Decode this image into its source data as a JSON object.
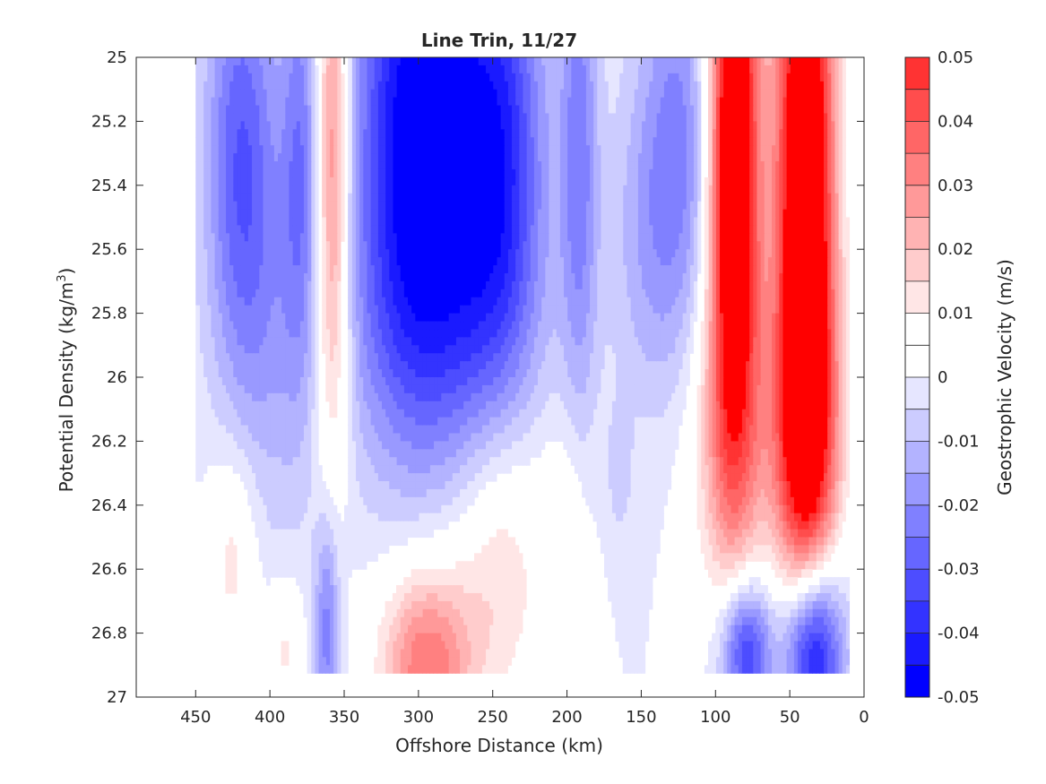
{
  "chart_data": {
    "type": "heatmap",
    "title": "Line Trin, 11/27",
    "xlabel": "Offshore Distance (km)",
    "ylabel_main": "Potential Density (kg/m",
    "ylabel_sup": "3",
    "ylabel_close": ")",
    "colorbar_label": "Geostrophic Velocity (m/s)",
    "xlim": [
      490,
      0
    ],
    "ylim": [
      25,
      27
    ],
    "x_reversed": true,
    "y_reversed": true,
    "grid": false,
    "x_ticks": [
      {
        "value": 450,
        "label": "450"
      },
      {
        "value": 400,
        "label": "400"
      },
      {
        "value": 350,
        "label": "350"
      },
      {
        "value": 300,
        "label": "300"
      },
      {
        "value": 250,
        "label": "250"
      },
      {
        "value": 200,
        "label": "200"
      },
      {
        "value": 150,
        "label": "150"
      },
      {
        "value": 100,
        "label": "100"
      },
      {
        "value": 50,
        "label": "50"
      },
      {
        "value": 0,
        "label": "0"
      }
    ],
    "y_ticks": [
      {
        "value": 25,
        "label": "25"
      },
      {
        "value": 25.2,
        "label": "25.2"
      },
      {
        "value": 25.4,
        "label": "25.4"
      },
      {
        "value": 25.6,
        "label": "25.6"
      },
      {
        "value": 25.8,
        "label": "25.8"
      },
      {
        "value": 26,
        "label": "26"
      },
      {
        "value": 26.2,
        "label": "26.2"
      },
      {
        "value": 26.4,
        "label": "26.4"
      },
      {
        "value": 26.6,
        "label": "26.6"
      },
      {
        "value": 26.8,
        "label": "26.8"
      },
      {
        "value": 27,
        "label": "27"
      }
    ],
    "colorbar": {
      "min": -0.05,
      "max": 0.05,
      "levels": [
        -0.05,
        -0.045,
        -0.04,
        -0.035,
        -0.03,
        -0.025,
        -0.02,
        -0.015,
        -0.01,
        -0.005,
        0,
        0.005,
        0.01,
        0.015,
        0.02,
        0.025,
        0.03,
        0.035,
        0.04,
        0.045,
        0.05
      ],
      "colors": [
        "#0000ff",
        "#1a1aff",
        "#3333ff",
        "#4d4dff",
        "#6666ff",
        "#8080ff",
        "#9999ff",
        "#b3b3ff",
        "#ccccff",
        "#e6e6ff",
        "#ffffff",
        "#ffffff",
        "#ffe6e6",
        "#ffcccc",
        "#ffb3b3",
        "#ff9999",
        "#ff8080",
        "#ff6666",
        "#ff4d4d",
        "#ff3333",
        "#ff0000"
      ],
      "ticks": [
        {
          "value": 0.05,
          "label": "0.05"
        },
        {
          "value": 0.04,
          "label": "0.04"
        },
        {
          "value": 0.03,
          "label": "0.03"
        },
        {
          "value": 0.02,
          "label": "0.02"
        },
        {
          "value": 0.01,
          "label": "0.01"
        },
        {
          "value": 0,
          "label": "0"
        },
        {
          "value": -0.01,
          "label": "-0.01"
        },
        {
          "value": -0.02,
          "label": "-0.02"
        },
        {
          "value": -0.03,
          "label": "-0.03"
        },
        {
          "value": -0.04,
          "label": "-0.04"
        },
        {
          "value": -0.05,
          "label": "-0.05"
        }
      ]
    },
    "data_extent": {
      "x": [
        10,
        450
      ],
      "y": [
        25,
        26.9
      ]
    },
    "features": [
      {
        "name": "a1",
        "x": 420,
        "y": 25.3,
        "sx": 17,
        "sy": 0.5,
        "amp": -0.028
      },
      {
        "name": "a2",
        "x": 380,
        "y": 25.3,
        "sx": 9,
        "sy": 0.5,
        "amp": -0.02
      },
      {
        "name": "a3",
        "x": 400,
        "y": 25.9,
        "sx": 22,
        "sy": 0.5,
        "amp": -0.01
      },
      {
        "name": "b1",
        "x": 358,
        "y": 25.25,
        "sx": 8,
        "sy": 0.5,
        "amp": 0.034
      },
      {
        "name": "b2",
        "x": 358,
        "y": 25.95,
        "sx": 9,
        "sy": 0.35,
        "amp": 0.012
      },
      {
        "name": "c1",
        "x": 300,
        "y": 25.15,
        "sx": 30,
        "sy": 0.6,
        "amp": -0.05
      },
      {
        "name": "c2",
        "x": 245,
        "y": 25.3,
        "sx": 22,
        "sy": 0.55,
        "amp": -0.035
      },
      {
        "name": "c3",
        "x": 290,
        "y": 25.85,
        "sx": 42,
        "sy": 0.35,
        "amp": -0.018
      },
      {
        "name": "d1",
        "x": 192,
        "y": 25.3,
        "sx": 9,
        "sy": 0.6,
        "amp": -0.022
      },
      {
        "name": "e1",
        "x": 125,
        "y": 25.3,
        "sx": 20,
        "sy": 0.5,
        "amp": -0.022
      },
      {
        "name": "e2",
        "x": 150,
        "y": 25.6,
        "sx": 18,
        "sy": 0.35,
        "amp": -0.008
      },
      {
        "name": "f1",
        "x": 88,
        "y": 25.3,
        "sx": 12,
        "sy": 0.7,
        "amp": 0.075
      },
      {
        "name": "f2",
        "x": 40,
        "y": 25.4,
        "sx": 14,
        "sy": 0.8,
        "amp": 0.075
      },
      {
        "name": "f3",
        "x": 90,
        "y": 26.2,
        "sx": 22,
        "sy": 0.35,
        "amp": 0.018
      },
      {
        "name": "f4",
        "x": 38,
        "y": 26.2,
        "sx": 16,
        "sy": 0.35,
        "amp": 0.03
      },
      {
        "name": "g1",
        "x": 295,
        "y": 26.9,
        "sx": 22,
        "sy": 0.22,
        "amp": 0.035
      },
      {
        "name": "g2",
        "x": 245,
        "y": 26.55,
        "sx": 22,
        "sy": 0.35,
        "amp": 0.016
      },
      {
        "name": "g3",
        "x": 425,
        "y": 26.55,
        "sx": 12,
        "sy": 0.25,
        "amp": 0.014
      },
      {
        "name": "g4",
        "x": 390,
        "y": 26.85,
        "sx": 9,
        "sy": 0.15,
        "amp": 0.012
      },
      {
        "name": "g5",
        "x": 200,
        "y": 26.55,
        "sx": 11,
        "sy": 0.3,
        "amp": 0.009
      },
      {
        "name": "h1",
        "x": 362,
        "y": 26.8,
        "sx": 6,
        "sy": 0.25,
        "amp": -0.022
      },
      {
        "name": "h2",
        "x": 80,
        "y": 26.85,
        "sx": 12,
        "sy": 0.16,
        "amp": -0.04
      },
      {
        "name": "h3",
        "x": 35,
        "y": 26.85,
        "sx": 14,
        "sy": 0.2,
        "amp": -0.055
      },
      {
        "name": "h4",
        "x": 165,
        "y": 26.3,
        "sx": 6,
        "sy": 0.15,
        "amp": -0.008
      }
    ]
  }
}
